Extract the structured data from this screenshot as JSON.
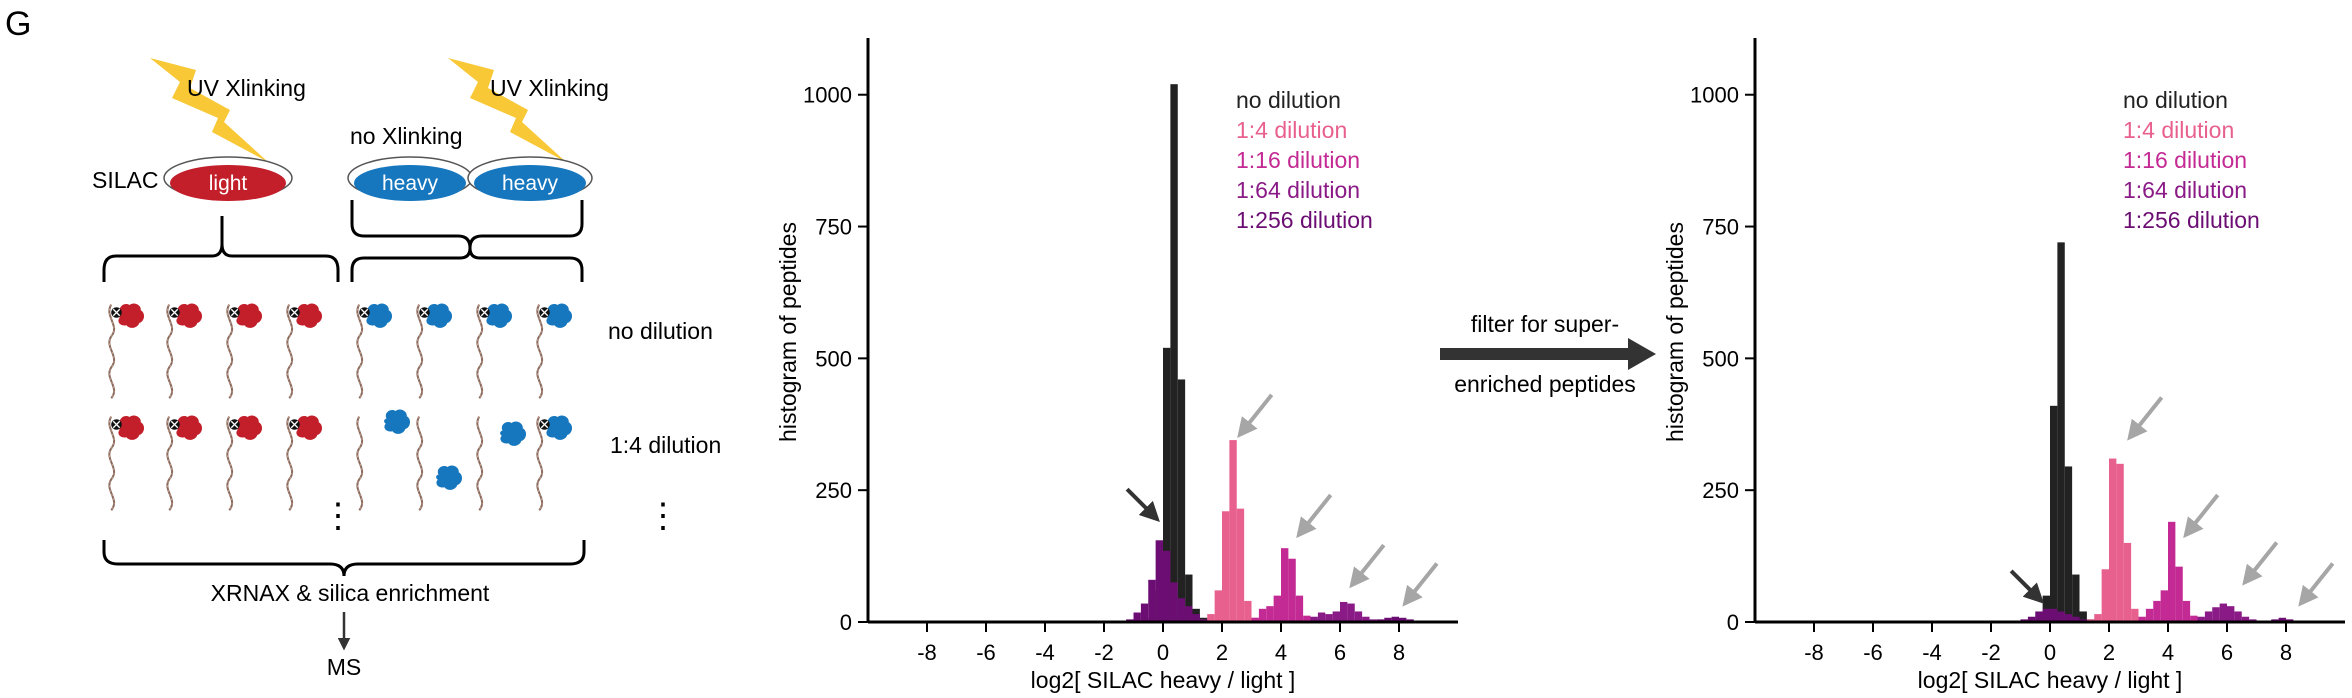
{
  "panel_label": "G",
  "schematic": {
    "uv_left": "UV Xlinking",
    "uv_right": "UV Xlinking",
    "no_xlink": "no Xlinking",
    "silac": "SILAC",
    "dish_light": "light",
    "dish_heavy_1": "heavy",
    "dish_heavy_2": "heavy",
    "row1_label": "no dilution",
    "row2_label": "1:4 dilution",
    "ellipsis_left": "⋮",
    "ellipsis_right": "⋮",
    "enrichment": "XRNAX & silica enrichment",
    "ms": "MS"
  },
  "filter_arrow": {
    "line1": "filter for super-",
    "line2": "enriched peptides"
  },
  "colors": {
    "no_dilution": "#222222",
    "dil_1_4": "#e8608d",
    "dil_1_16": "#c42a93",
    "dil_1_64": "#8a1a86",
    "dil_1_256": "#6b0d73",
    "light_dish": "#c21f2a",
    "heavy_dish": "#1677be",
    "arrow_gray": "#a6a6a6",
    "arrow_dark": "#333333",
    "bolt": "#f7c325"
  },
  "chart_data": [
    {
      "type": "bar",
      "xlabel": "log2[ SILAC heavy / light ]",
      "ylabel": "histogram of peptides",
      "xlim": [
        -10,
        10
      ],
      "ylim": [
        0,
        1100
      ],
      "xticks": [
        -8,
        -6,
        -4,
        -2,
        0,
        2,
        4,
        6,
        8
      ],
      "yticks": [
        0,
        250,
        500,
        750,
        1000
      ],
      "bin_width": 0.25,
      "legend": {
        "position": "top-right"
      },
      "series": [
        {
          "name": "no dilution",
          "color": "#222222",
          "x": [
            -0.5,
            -0.25,
            0,
            0.25,
            0.5,
            0.75,
            1.0,
            1.25,
            1.5
          ],
          "values": [
            8,
            60,
            520,
            1020,
            460,
            90,
            25,
            8,
            3
          ]
        },
        {
          "name": "1:4 dilution",
          "color": "#e8608d",
          "x": [
            1.25,
            1.5,
            1.75,
            2.0,
            2.25,
            2.5,
            2.75,
            3.0
          ],
          "values": [
            5,
            15,
            60,
            210,
            345,
            215,
            40,
            8
          ]
        },
        {
          "name": "1:16 dilution",
          "color": "#c42a93",
          "x": [
            3.0,
            3.25,
            3.5,
            3.75,
            4.0,
            4.25,
            4.5,
            4.75,
            5.0
          ],
          "values": [
            8,
            25,
            30,
            50,
            140,
            120,
            50,
            12,
            5
          ]
        },
        {
          "name": "1:64 dilution",
          "color": "#8a1a86",
          "x": [
            5.0,
            5.25,
            5.5,
            5.75,
            6.0,
            6.25,
            6.5,
            6.75,
            7.0
          ],
          "values": [
            10,
            18,
            15,
            20,
            38,
            35,
            20,
            10,
            5
          ]
        },
        {
          "name": "1:256 dilution",
          "color": "#6b0d73",
          "x": [
            -1.25,
            -1.0,
            -0.75,
            -0.5,
            -0.25,
            0,
            0.25,
            0.5,
            0.75,
            1.0,
            1.25,
            7.25,
            7.5,
            7.75,
            8.0,
            8.25
          ],
          "values": [
            5,
            18,
            35,
            80,
            155,
            135,
            75,
            45,
            30,
            15,
            5,
            5,
            8,
            10,
            8,
            5
          ]
        }
      ],
      "annotations": [
        {
          "label": "dark-arrow",
          "x": -0.2,
          "y": 195
        },
        {
          "label": "gray-arrow",
          "x": 2.6,
          "y": 355
        },
        {
          "label": "gray-arrow",
          "x": 4.6,
          "y": 165
        },
        {
          "label": "gray-arrow",
          "x": 6.4,
          "y": 70
        },
        {
          "label": "gray-arrow",
          "x": 8.2,
          "y": 35
        }
      ]
    },
    {
      "type": "bar",
      "xlabel": "log2[ SILAC heavy / light ]",
      "ylabel": "histogram of peptides",
      "xlim": [
        -10,
        10
      ],
      "ylim": [
        0,
        1100
      ],
      "xticks": [
        -8,
        -6,
        -4,
        -2,
        0,
        2,
        4,
        6,
        8
      ],
      "yticks": [
        0,
        250,
        500,
        750,
        1000
      ],
      "bin_width": 0.25,
      "legend": {
        "position": "top-right"
      },
      "series": [
        {
          "name": "no dilution",
          "color": "#222222",
          "x": [
            -0.5,
            -0.25,
            0,
            0.25,
            0.5,
            0.75,
            1.0,
            1.25
          ],
          "values": [
            10,
            50,
            410,
            720,
            295,
            90,
            20,
            5
          ]
        },
        {
          "name": "1:4 dilution",
          "color": "#e8608d",
          "x": [
            1.25,
            1.5,
            1.75,
            2.0,
            2.25,
            2.5,
            2.75,
            3.0
          ],
          "values": [
            5,
            15,
            100,
            310,
            300,
            150,
            25,
            5
          ]
        },
        {
          "name": "1:16 dilution",
          "color": "#c42a93",
          "x": [
            3.0,
            3.25,
            3.5,
            3.75,
            4.0,
            4.25,
            4.5,
            4.75,
            5.0
          ],
          "values": [
            10,
            25,
            40,
            60,
            190,
            105,
            40,
            12,
            5
          ]
        },
        {
          "name": "1:64 dilution",
          "color": "#8a1a86",
          "x": [
            5.0,
            5.25,
            5.5,
            5.75,
            6.0,
            6.25,
            6.5,
            6.75
          ],
          "values": [
            10,
            20,
            28,
            35,
            30,
            20,
            10,
            5
          ]
        },
        {
          "name": "1:256 dilution",
          "color": "#6b0d73",
          "x": [
            -1.0,
            -0.75,
            -0.5,
            -0.25,
            0,
            0.25,
            0.5,
            0.75,
            1.0,
            7.5,
            7.75,
            8.0
          ],
          "values": [
            5,
            10,
            20,
            25,
            25,
            20,
            15,
            10,
            5,
            5,
            8,
            5
          ]
        }
      ],
      "annotations": [
        {
          "label": "dark-arrow",
          "x": -0.3,
          "y": 40
        },
        {
          "label": "gray-arrow",
          "x": 2.7,
          "y": 350
        },
        {
          "label": "gray-arrow",
          "x": 4.6,
          "y": 165
        },
        {
          "label": "gray-arrow",
          "x": 6.6,
          "y": 75
        },
        {
          "label": "gray-arrow",
          "x": 8.5,
          "y": 35
        }
      ]
    }
  ]
}
